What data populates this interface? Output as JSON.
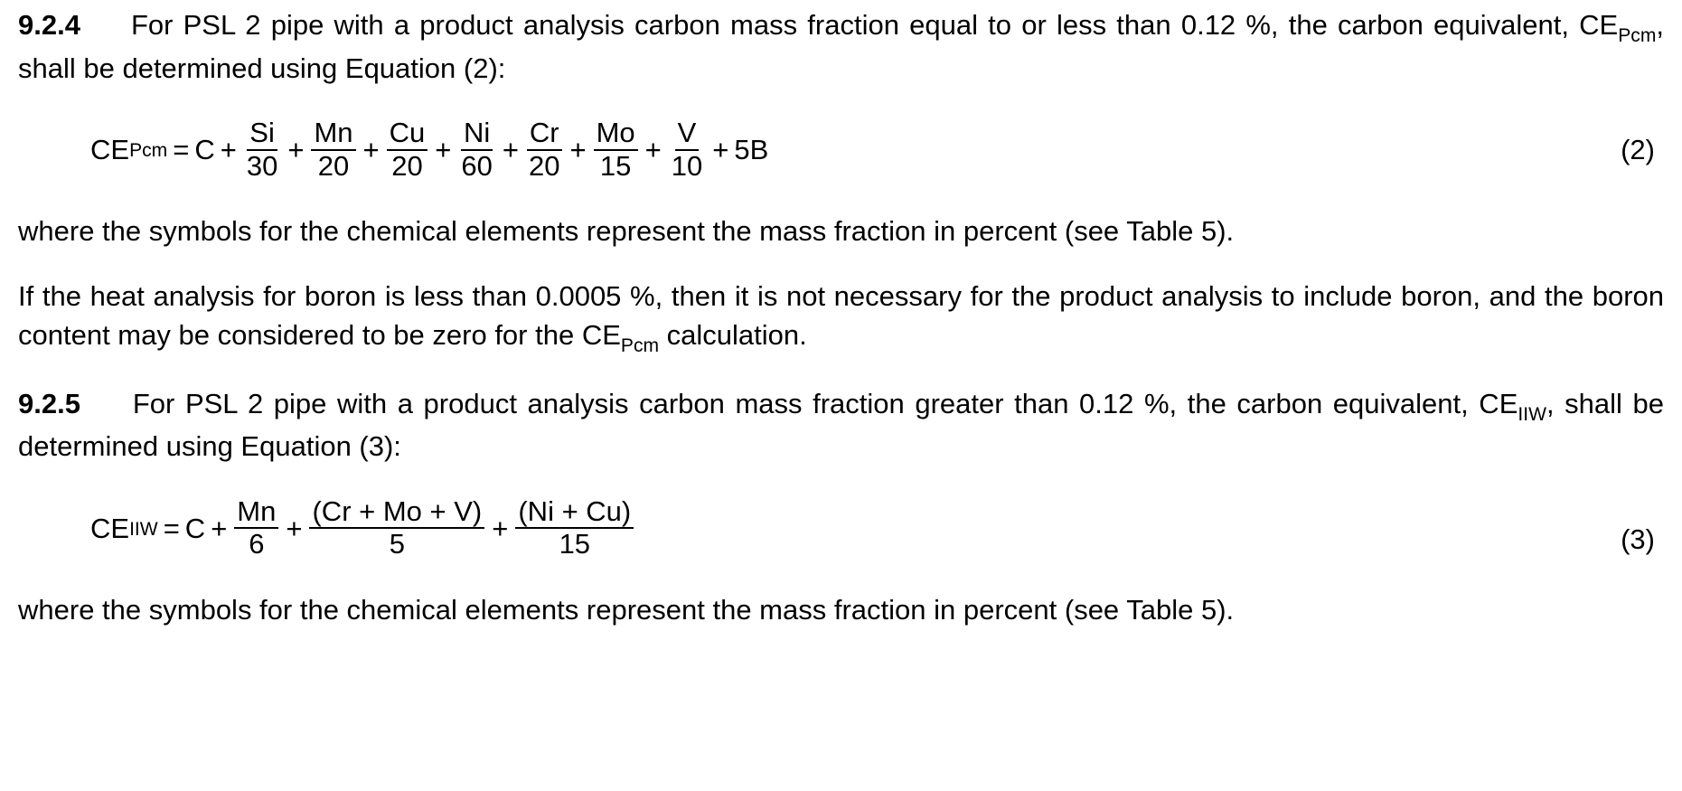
{
  "section1": {
    "number": "9.2.4",
    "text_before_ce": "For PSL 2 pipe with a product analysis carbon mass fraction equal to or less than 0.12 %, the carbon equivalent, CE",
    "ce_sub": "Pcm",
    "text_after_ce": ", shall be determined using Equation (2):"
  },
  "eq2": {
    "lhs_main": "CE",
    "lhs_sub": "Pcm",
    "eq_sign": "=",
    "first_term": "C",
    "plus": "+",
    "fractions": [
      {
        "num": "Si",
        "den": "30"
      },
      {
        "num": "Mn",
        "den": "20"
      },
      {
        "num": "Cu",
        "den": "20"
      },
      {
        "num": "Ni",
        "den": "60"
      },
      {
        "num": "Cr",
        "den": "20"
      },
      {
        "num": "Mo",
        "den": "15"
      },
      {
        "num": "V",
        "den": "10"
      }
    ],
    "tail_term": "5B",
    "label": "(2)"
  },
  "where1": "where the symbols for the chemical elements represent the mass fraction in percent (see Table 5).",
  "boron": {
    "text_before_ce": "If the heat analysis for boron is less than 0.0005 %, then it is not necessary for the product analysis to include boron, and the boron content may be considered to be zero for the CE",
    "ce_sub": "Pcm",
    "text_after_ce": " calculation."
  },
  "section2": {
    "number": "9.2.5",
    "text_before_ce": "For PSL 2 pipe with a product analysis carbon mass fraction greater than 0.12 %, the carbon equivalent, CE",
    "ce_sub": "IIW",
    "text_after_ce": ", shall be determined using Equation (3):"
  },
  "eq3": {
    "lhs_main": "CE",
    "lhs_sub": "IIW",
    "eq_sign": "=",
    "first_term": "C",
    "plus": "+",
    "fractions": [
      {
        "num": "Mn",
        "den": "6"
      },
      {
        "num": "(Cr + Mo + V)",
        "den": "5"
      },
      {
        "num": "(Ni + Cu)",
        "den": "15"
      }
    ],
    "label": "(3)"
  },
  "where2": "where the symbols for the chemical elements represent the mass fraction in percent (see Table 5)."
}
